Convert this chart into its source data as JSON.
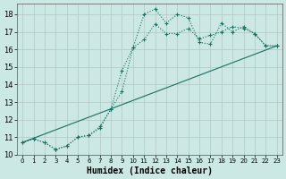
{
  "xlabel": "Humidex (Indice chaleur)",
  "bg_color": "#cce8e4",
  "grid_color": "#b0c8c4",
  "line_color": "#1a6e60",
  "xlim": [
    -0.5,
    23.5
  ],
  "ylim": [
    10,
    18.6
  ],
  "yticks": [
    10,
    11,
    12,
    13,
    14,
    15,
    16,
    17,
    18
  ],
  "xticks": [
    0,
    1,
    2,
    3,
    4,
    5,
    6,
    7,
    8,
    9,
    10,
    11,
    12,
    13,
    14,
    15,
    16,
    17,
    18,
    19,
    20,
    21,
    22,
    23
  ],
  "line1_x": [
    0,
    1,
    2,
    3,
    4,
    5,
    6,
    7,
    8,
    9,
    10,
    11,
    12,
    13,
    14,
    15,
    16,
    17,
    18,
    19,
    20,
    21,
    22,
    23
  ],
  "line1_y": [
    10.7,
    10.9,
    10.7,
    10.3,
    10.5,
    11.0,
    11.1,
    11.5,
    12.6,
    13.6,
    16.1,
    18.0,
    18.3,
    17.5,
    18.0,
    17.8,
    16.4,
    16.3,
    17.5,
    17.0,
    17.3,
    16.9,
    16.2,
    16.2
  ],
  "line2_x": [
    0,
    1,
    2,
    3,
    4,
    5,
    6,
    7,
    8,
    9,
    10,
    11,
    12,
    13,
    14,
    15,
    16,
    17,
    18,
    19,
    20,
    21,
    22,
    23
  ],
  "line2_y": [
    10.7,
    10.9,
    10.7,
    10.3,
    10.5,
    11.0,
    11.1,
    11.6,
    12.6,
    14.8,
    16.1,
    16.55,
    17.45,
    16.9,
    16.9,
    17.2,
    16.6,
    16.8,
    17.0,
    17.3,
    17.2,
    16.9,
    16.2,
    16.2
  ],
  "line3_x": [
    0,
    23
  ],
  "line3_y": [
    10.7,
    16.2
  ]
}
